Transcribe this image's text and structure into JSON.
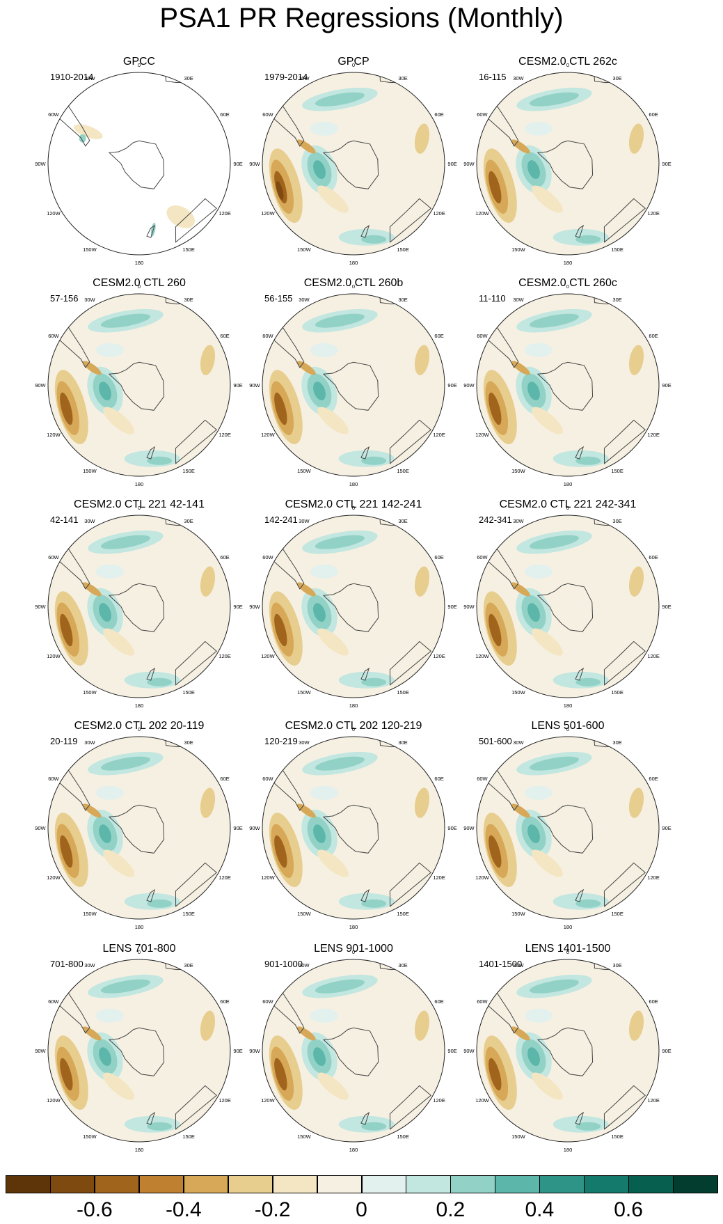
{
  "title": "PSA1 PR Regressions (Monthly)",
  "lon_labels": [
    "0",
    "30E",
    "60E",
    "90E",
    "120E",
    "150E",
    "180",
    "150W",
    "120W",
    "90W",
    "60W",
    "30W"
  ],
  "chart_data": {
    "type": "heatmap",
    "title": "PSA1 PR Regressions (Monthly)",
    "projection": "polar stereographic, Southern Hemisphere",
    "panels": [
      {
        "title": "GPCC",
        "period": "1910-2014",
        "coverage": "land-only"
      },
      {
        "title": "GPCP",
        "period": "1979-2014"
      },
      {
        "title": "CESM2.0 CTL 262c",
        "period": "16-115"
      },
      {
        "title": "CESM2.0 CTL 260",
        "period": "57-156"
      },
      {
        "title": "CESM2.0 CTL 260b",
        "period": "56-155"
      },
      {
        "title": "CESM2.0 CTL 260c",
        "period": "11-110"
      },
      {
        "title": "CESM2.0 CTL 221 42-141",
        "period": "42-141"
      },
      {
        "title": "CESM2.0 CTL 221 142-241",
        "period": "142-241"
      },
      {
        "title": "CESM2.0 CTL 221 242-341",
        "period": "242-341"
      },
      {
        "title": "CESM2.0 CTL 202 20-119",
        "period": "20-119"
      },
      {
        "title": "CESM2.0 CTL 202 120-219",
        "period": "120-219"
      },
      {
        "title": "LENS 501-600",
        "period": "501-600"
      },
      {
        "title": "LENS 701-800",
        "period": "701-800"
      },
      {
        "title": "LENS 901-1000",
        "period": "901-1000"
      },
      {
        "title": "LENS 1401-1500",
        "period": "1401-1500"
      }
    ],
    "colorbar": {
      "levels": [
        -0.7,
        -0.6,
        -0.5,
        -0.4,
        -0.3,
        -0.2,
        -0.1,
        0,
        0.1,
        0.2,
        0.3,
        0.4,
        0.5,
        0.6,
        0.7
      ],
      "tick_labels": [
        "-0.6",
        "-0.4",
        "-0.2",
        "0",
        "0.2",
        "0.4",
        "0.6"
      ],
      "colors": [
        "#5e3508",
        "#7f4a10",
        "#a0641c",
        "#bf8030",
        "#d6a858",
        "#e8ce8e",
        "#f4e6c2",
        "#f6f0e2",
        "#e2f0ee",
        "#c2e6e0",
        "#92d2c6",
        "#5cb6aa",
        "#2e9488",
        "#147a6c",
        "#07604f",
        "#033d2f"
      ]
    }
  }
}
